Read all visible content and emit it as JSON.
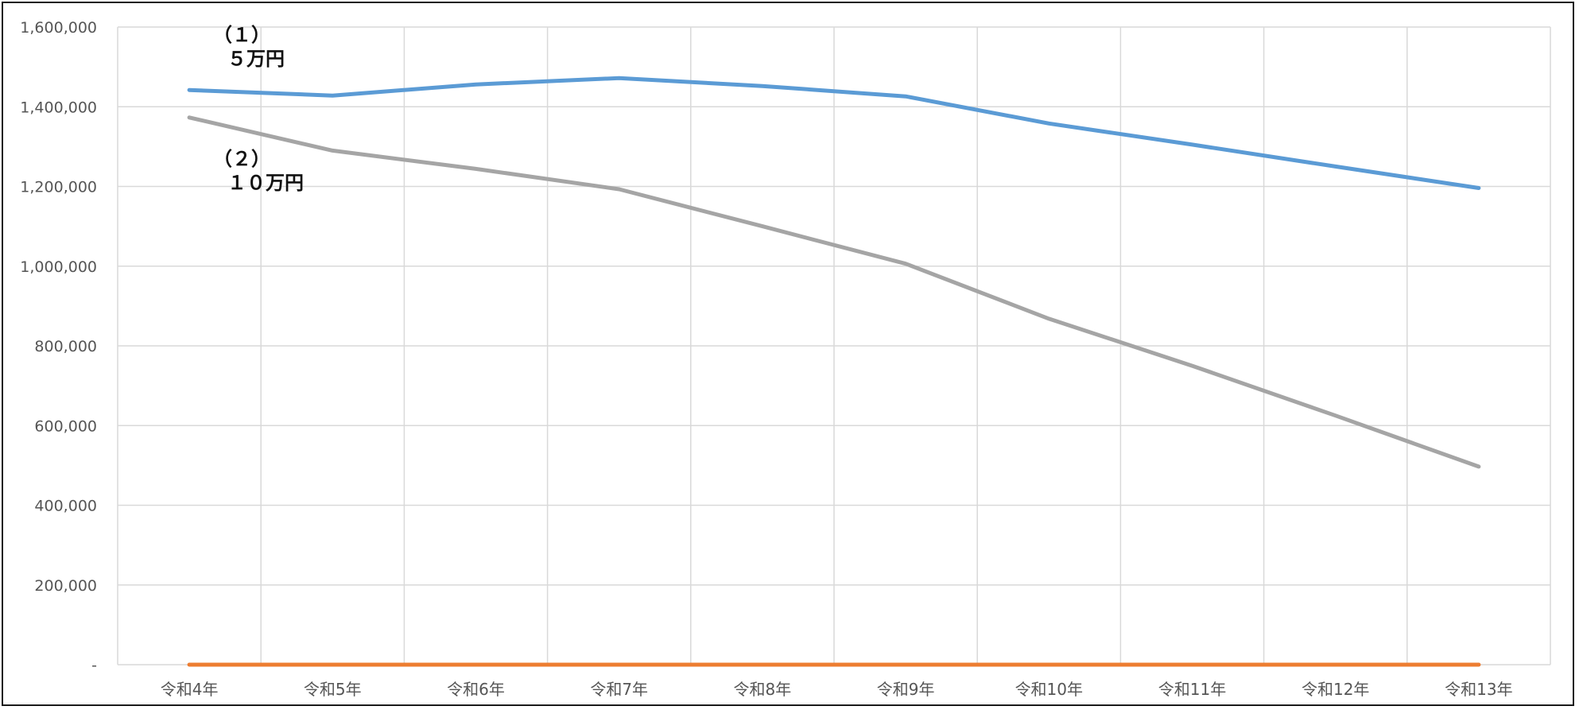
{
  "chart_data": {
    "type": "line",
    "title": "",
    "xlabel": "",
    "ylabel": "",
    "categories": [
      "令和4年",
      "令和5年",
      "令和6年",
      "令和7年",
      "令和8年",
      "令和9年",
      "令和10年",
      "令和11年",
      "令和12年",
      "令和13年"
    ],
    "ylim": [
      0,
      1600000
    ],
    "yticks": [
      "-",
      "200,000",
      "400,000",
      "600,000",
      "800,000",
      "1,000,000",
      "1,200,000",
      "1,400,000",
      "1,600,000"
    ],
    "grid": true,
    "legend": "none",
    "series": [
      {
        "color": "#5b9bd5",
        "values": [
          1442000,
          1428000,
          1456000,
          1472000,
          1452000,
          1426000,
          1358000,
          1305000,
          1250000,
          1196000
        ]
      },
      {
        "color": "#a5a5a5",
        "values": [
          1373000,
          1290000,
          1244000,
          1193000,
          1100000,
          1006000,
          868000,
          750000,
          625000,
          497000
        ]
      },
      {
        "color": "#ed7d31",
        "values": [
          0,
          0,
          0,
          0,
          0,
          0,
          0,
          0,
          0,
          0
        ]
      }
    ],
    "annotations": [
      {
        "line1": "（１）",
        "line2": "５万円"
      },
      {
        "line1": "（２）",
        "line2": "１０万円"
      }
    ]
  }
}
